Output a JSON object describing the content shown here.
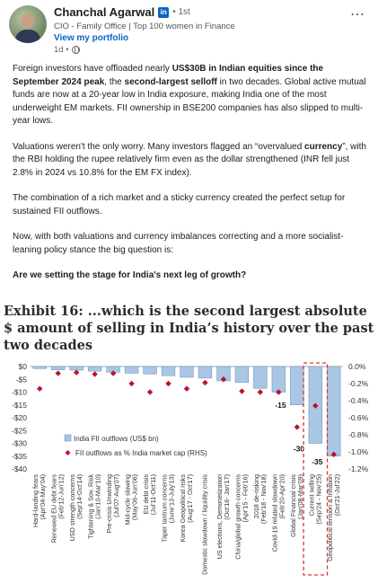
{
  "author": {
    "name": "Chanchal Agarwal",
    "badge": "in",
    "degree": "• 1st",
    "headline": "CIO - Family Office | Top 100 women in Finance",
    "portfolio_link": "View my portfolio",
    "time": "1d •",
    "visibility_icon": "globe-icon"
  },
  "menu_icon": "more-dots-icon",
  "post": {
    "p1": [
      {
        "t": "Foreign investors have offloaded nearly ",
        "b": false
      },
      {
        "t": "US$30B in Indian equities since the September 2024 peak",
        "b": true
      },
      {
        "t": ", the ",
        "b": false
      },
      {
        "t": "second-largest selloff",
        "b": true
      },
      {
        "t": " in two decades. Global active mutual funds are now at a 20-year low in India exposure, making India one of the most underweight EM markets. FII ownership in BSE200 companies has also slipped to multi-year lows.",
        "b": false
      }
    ],
    "p2": [
      {
        "t": "Valuations weren't the only worry. Many investors flagged an “overvalued ",
        "b": false
      },
      {
        "t": "currency",
        "b": true
      },
      {
        "t": "”, with the RBI holding the rupee relatively firm even as the dollar strengthened (INR fell just 2.8% in 2024 vs 10.8% for the EM FX index).",
        "b": false
      }
    ],
    "p3": [
      {
        "t": "The combination of a rich market and a sticky currency created the perfect setup for sustained FII outflows.",
        "b": false
      }
    ],
    "p4": [
      {
        "t": "Now, with both valuations and currency imbalances correcting and a more socialist-leaning policy stance the big question is:",
        "b": false
      }
    ],
    "p5": [
      {
        "t": "Are we setting the stage for India's next leg of growth?",
        "b": true
      }
    ]
  },
  "exhibit": {
    "title": "Exhibit 16: ...which is the second largest absolute $ amount of selling in India’s history over the past two decades"
  },
  "chart_data": {
    "type": "bar",
    "categories": [
      "Hard-landing fears (Apr'04-May'04)",
      "Renewed EU debt fears (Feb'12-Jun'12)",
      "USD strength concerns (Sep'14-Oct'14)",
      "Tightening & Sov. Risk (Jan'10-Mar'10)",
      "Pre-crisis Unwinding (Jul'07-Aug'07)",
      "Mid-cycle slowing (May'06-Jun'06)",
      "EU debt crisis (Jul'11-Oct'11)",
      "Taper tantrum concerns (June'13-July'13)",
      "Korea Geopolitical risks (Aug'17 - Oct'17)",
      "Domestic slowdown / liquidity crisis",
      "US elections, Demonetization (Oct'16- Jan'17)",
      "China/global growth concerns (Apr'15 - Feb'16)",
      "2018 de-risking (Feb'18 - Nov'18)",
      "Covid-19 related slowdown (Feb'20-Apr'20)",
      "Global Financial crisis (Jan'08-Mar'09)",
      "Current selling (Sep'24 - Nov'25)",
      "Geopolitical tension & Inflation (Oct'21-Jul'22)"
    ],
    "series": [
      {
        "name": "India FII outflows (US$ bn)",
        "type": "bar",
        "values": [
          -0.8,
          -1.3,
          -1.4,
          -1.8,
          -2.2,
          -2.6,
          -2.9,
          -3.6,
          -4.2,
          -4.5,
          -5.6,
          -6.2,
          -8.5,
          -10.0,
          -15,
          -30,
          -35
        ]
      },
      {
        "name": "FII outflows as % India market cap (RHS)",
        "type": "scatter",
        "axis": "right",
        "values": [
          -0.26,
          -0.08,
          -0.07,
          -0.09,
          -0.08,
          -0.2,
          -0.3,
          -0.2,
          -0.26,
          -0.19,
          -0.15,
          -0.29,
          -0.3,
          -0.3,
          -0.71,
          -0.46,
          -1.03
        ]
      }
    ],
    "data_labels": {
      "14": "-15",
      "15": "-30",
      "16": "-35"
    },
    "ylim_left": [
      -40,
      0
    ],
    "yticks_left": [
      "$0",
      "-$5",
      "-$10",
      "-$15",
      "-$20",
      "-$25",
      "-$30",
      "-$35",
      "-$40"
    ],
    "ylim_right": [
      -1.2,
      0
    ],
    "yticks_right": [
      "0.0%",
      "-0.2%",
      "-0.4%",
      "-0.6%",
      "-0.8%",
      "-1.0%",
      "-1.2%"
    ],
    "highlight_category": "Current selling (Sep'24 - Nov'25)",
    "colors": {
      "bar": "#a9c7e4",
      "bar_border": "#6f98c0",
      "marker": "#c0112b",
      "highlight": "#e03030"
    },
    "legend": "inside-bottom-left"
  }
}
